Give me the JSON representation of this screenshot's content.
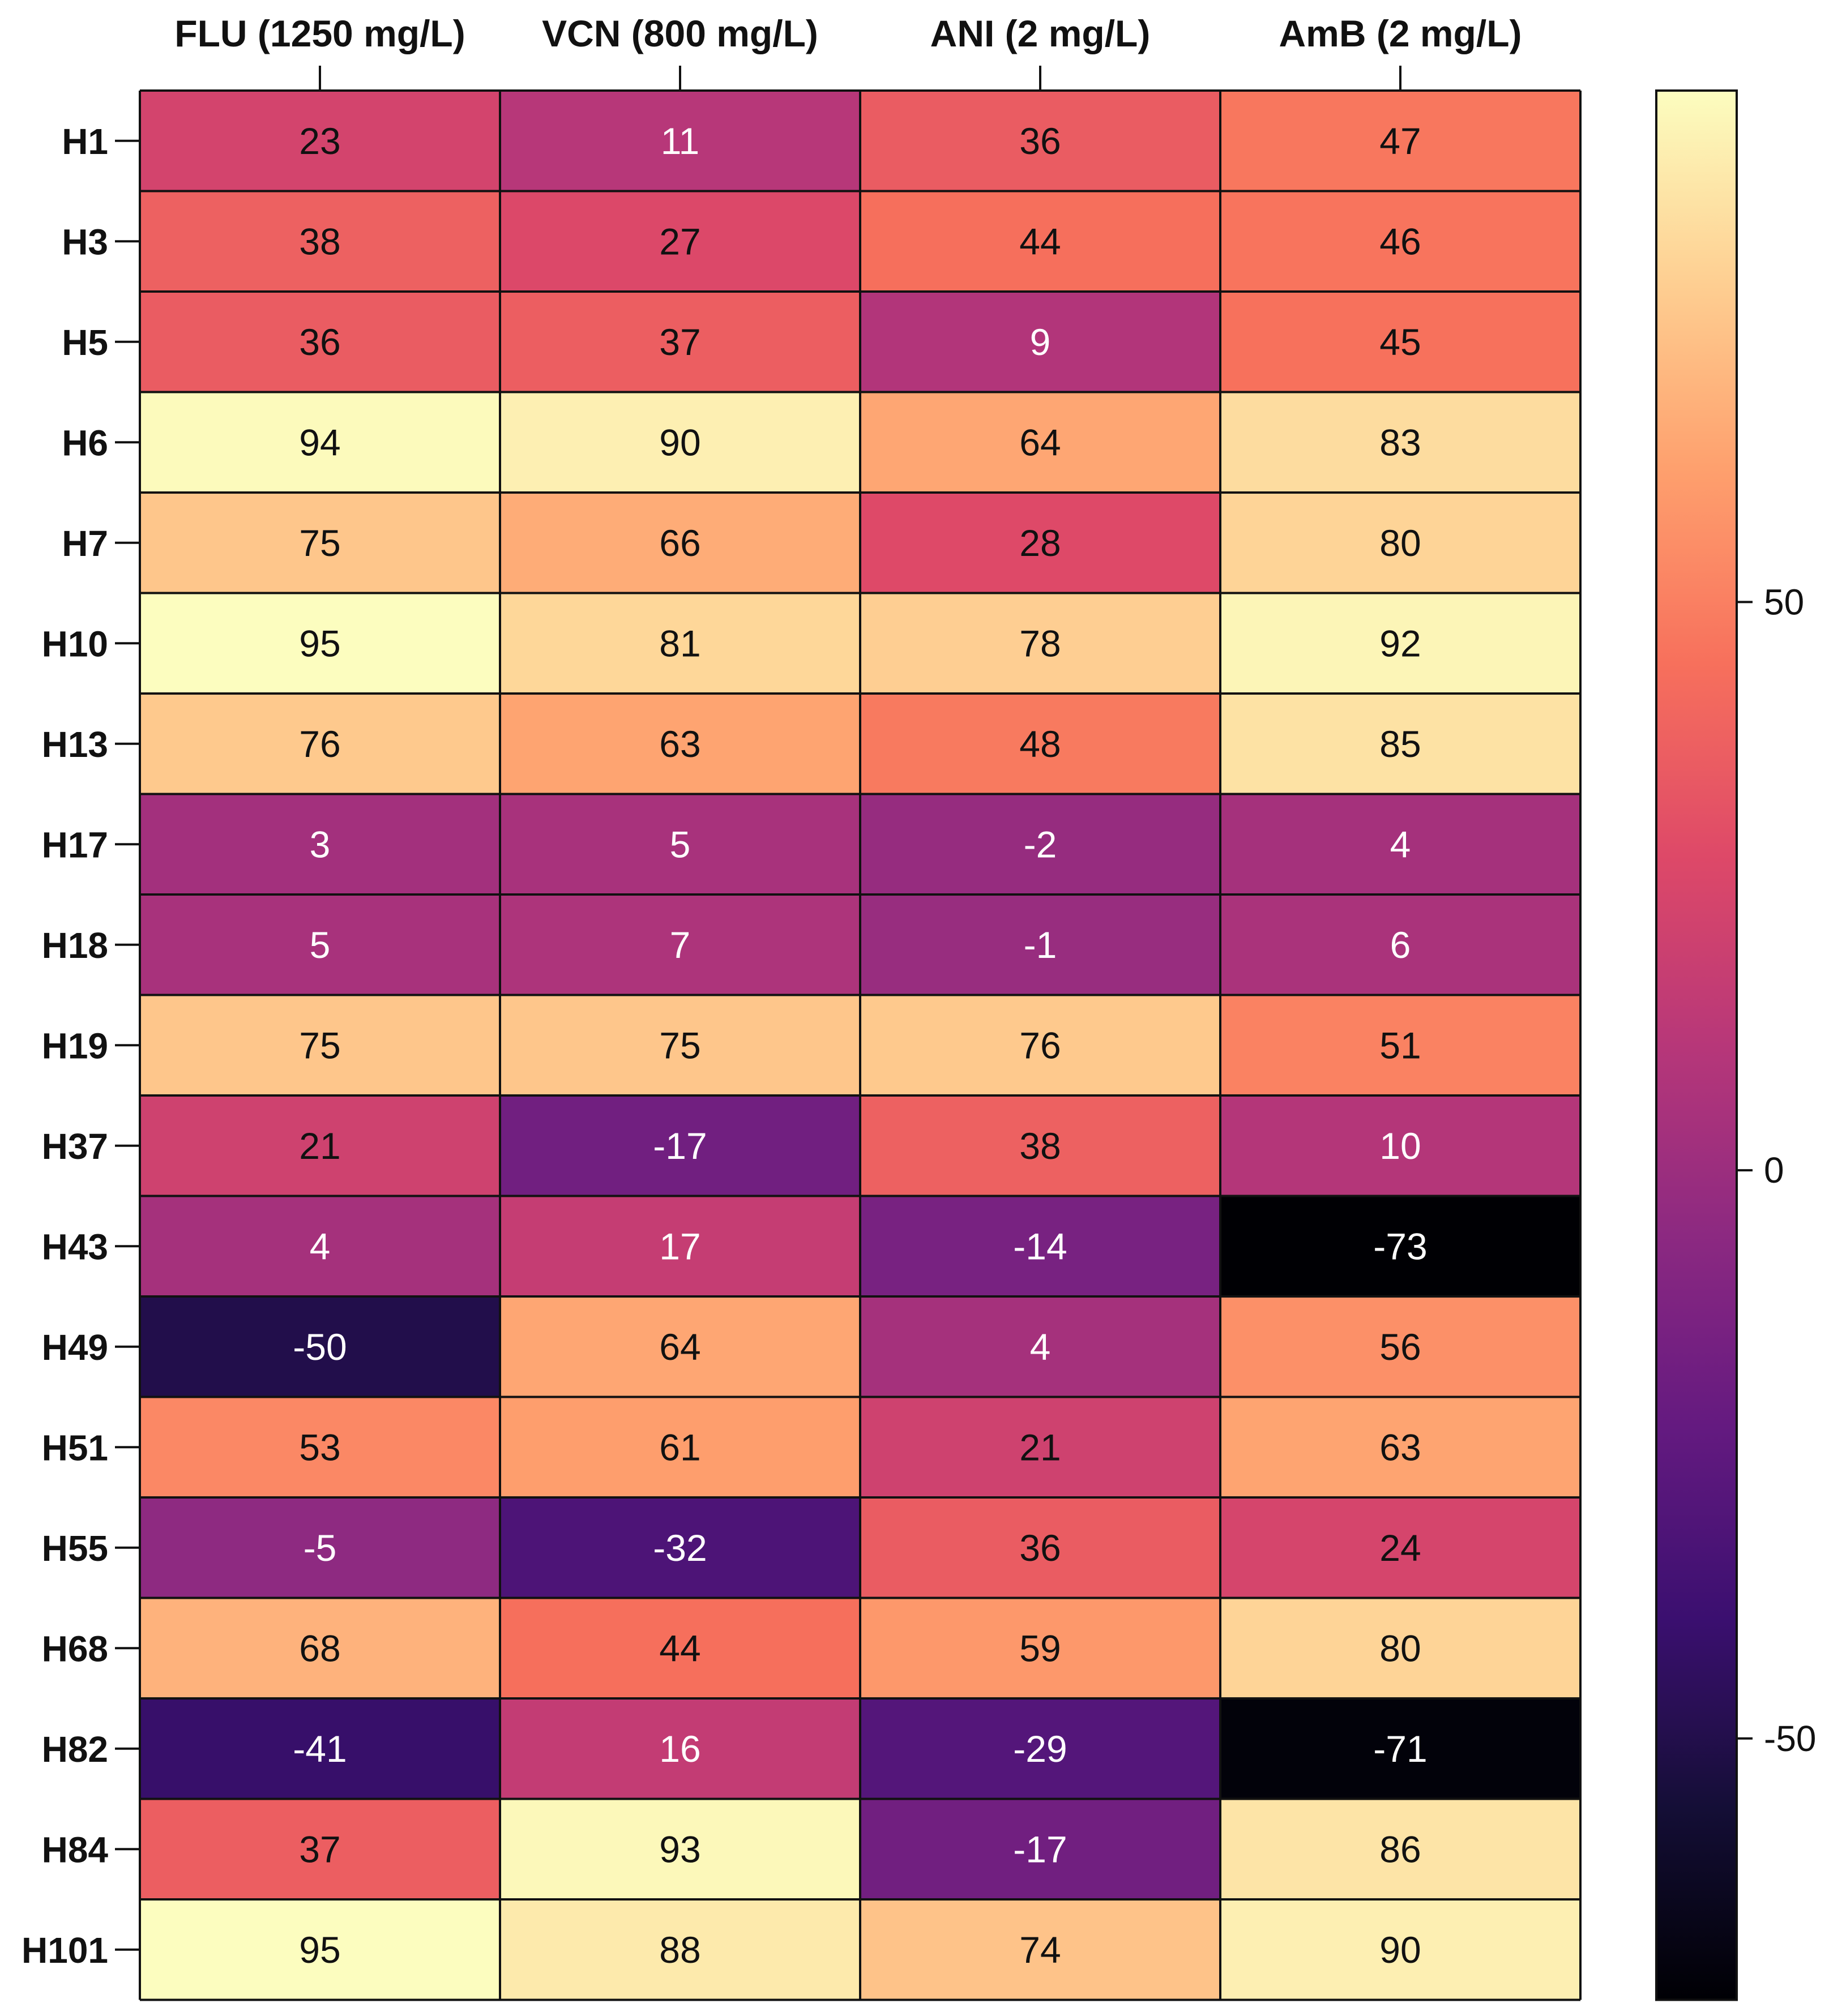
{
  "chart_data": {
    "type": "heatmap",
    "title": "",
    "xlabel": "",
    "ylabel": "",
    "columns": [
      "FLU (1250 mg/L)",
      "VCN (800 mg/L)",
      "ANI (2 mg/L)",
      "AmB (2 mg/L)"
    ],
    "rows": [
      "H1",
      "H3",
      "H5",
      "H6",
      "H7",
      "H10",
      "H13",
      "H17",
      "H18",
      "H19",
      "H37",
      "H43",
      "H49",
      "H51",
      "H55",
      "H68",
      "H82",
      "H84",
      "H101"
    ],
    "values": [
      [
        23,
        11,
        36,
        47
      ],
      [
        38,
        27,
        44,
        46
      ],
      [
        36,
        37,
        9,
        45
      ],
      [
        94,
        90,
        64,
        83
      ],
      [
        75,
        66,
        28,
        80
      ],
      [
        95,
        81,
        78,
        92
      ],
      [
        76,
        63,
        48,
        85
      ],
      [
        3,
        5,
        -2,
        4
      ],
      [
        5,
        7,
        -1,
        6
      ],
      [
        75,
        75,
        76,
        51
      ],
      [
        21,
        -17,
        38,
        10
      ],
      [
        4,
        17,
        -14,
        -73
      ],
      [
        -50,
        64,
        4,
        56
      ],
      [
        53,
        61,
        21,
        63
      ],
      [
        -5,
        -32,
        36,
        24
      ],
      [
        68,
        44,
        59,
        80
      ],
      [
        -41,
        16,
        -29,
        -71
      ],
      [
        37,
        93,
        -17,
        86
      ],
      [
        95,
        88,
        74,
        90
      ]
    ],
    "colorbar": {
      "colormap": "magma",
      "min": -73,
      "max": 95,
      "ticks": [
        50,
        0,
        -50
      ],
      "tick_labels": [
        "50",
        "0",
        "-50"
      ]
    }
  }
}
